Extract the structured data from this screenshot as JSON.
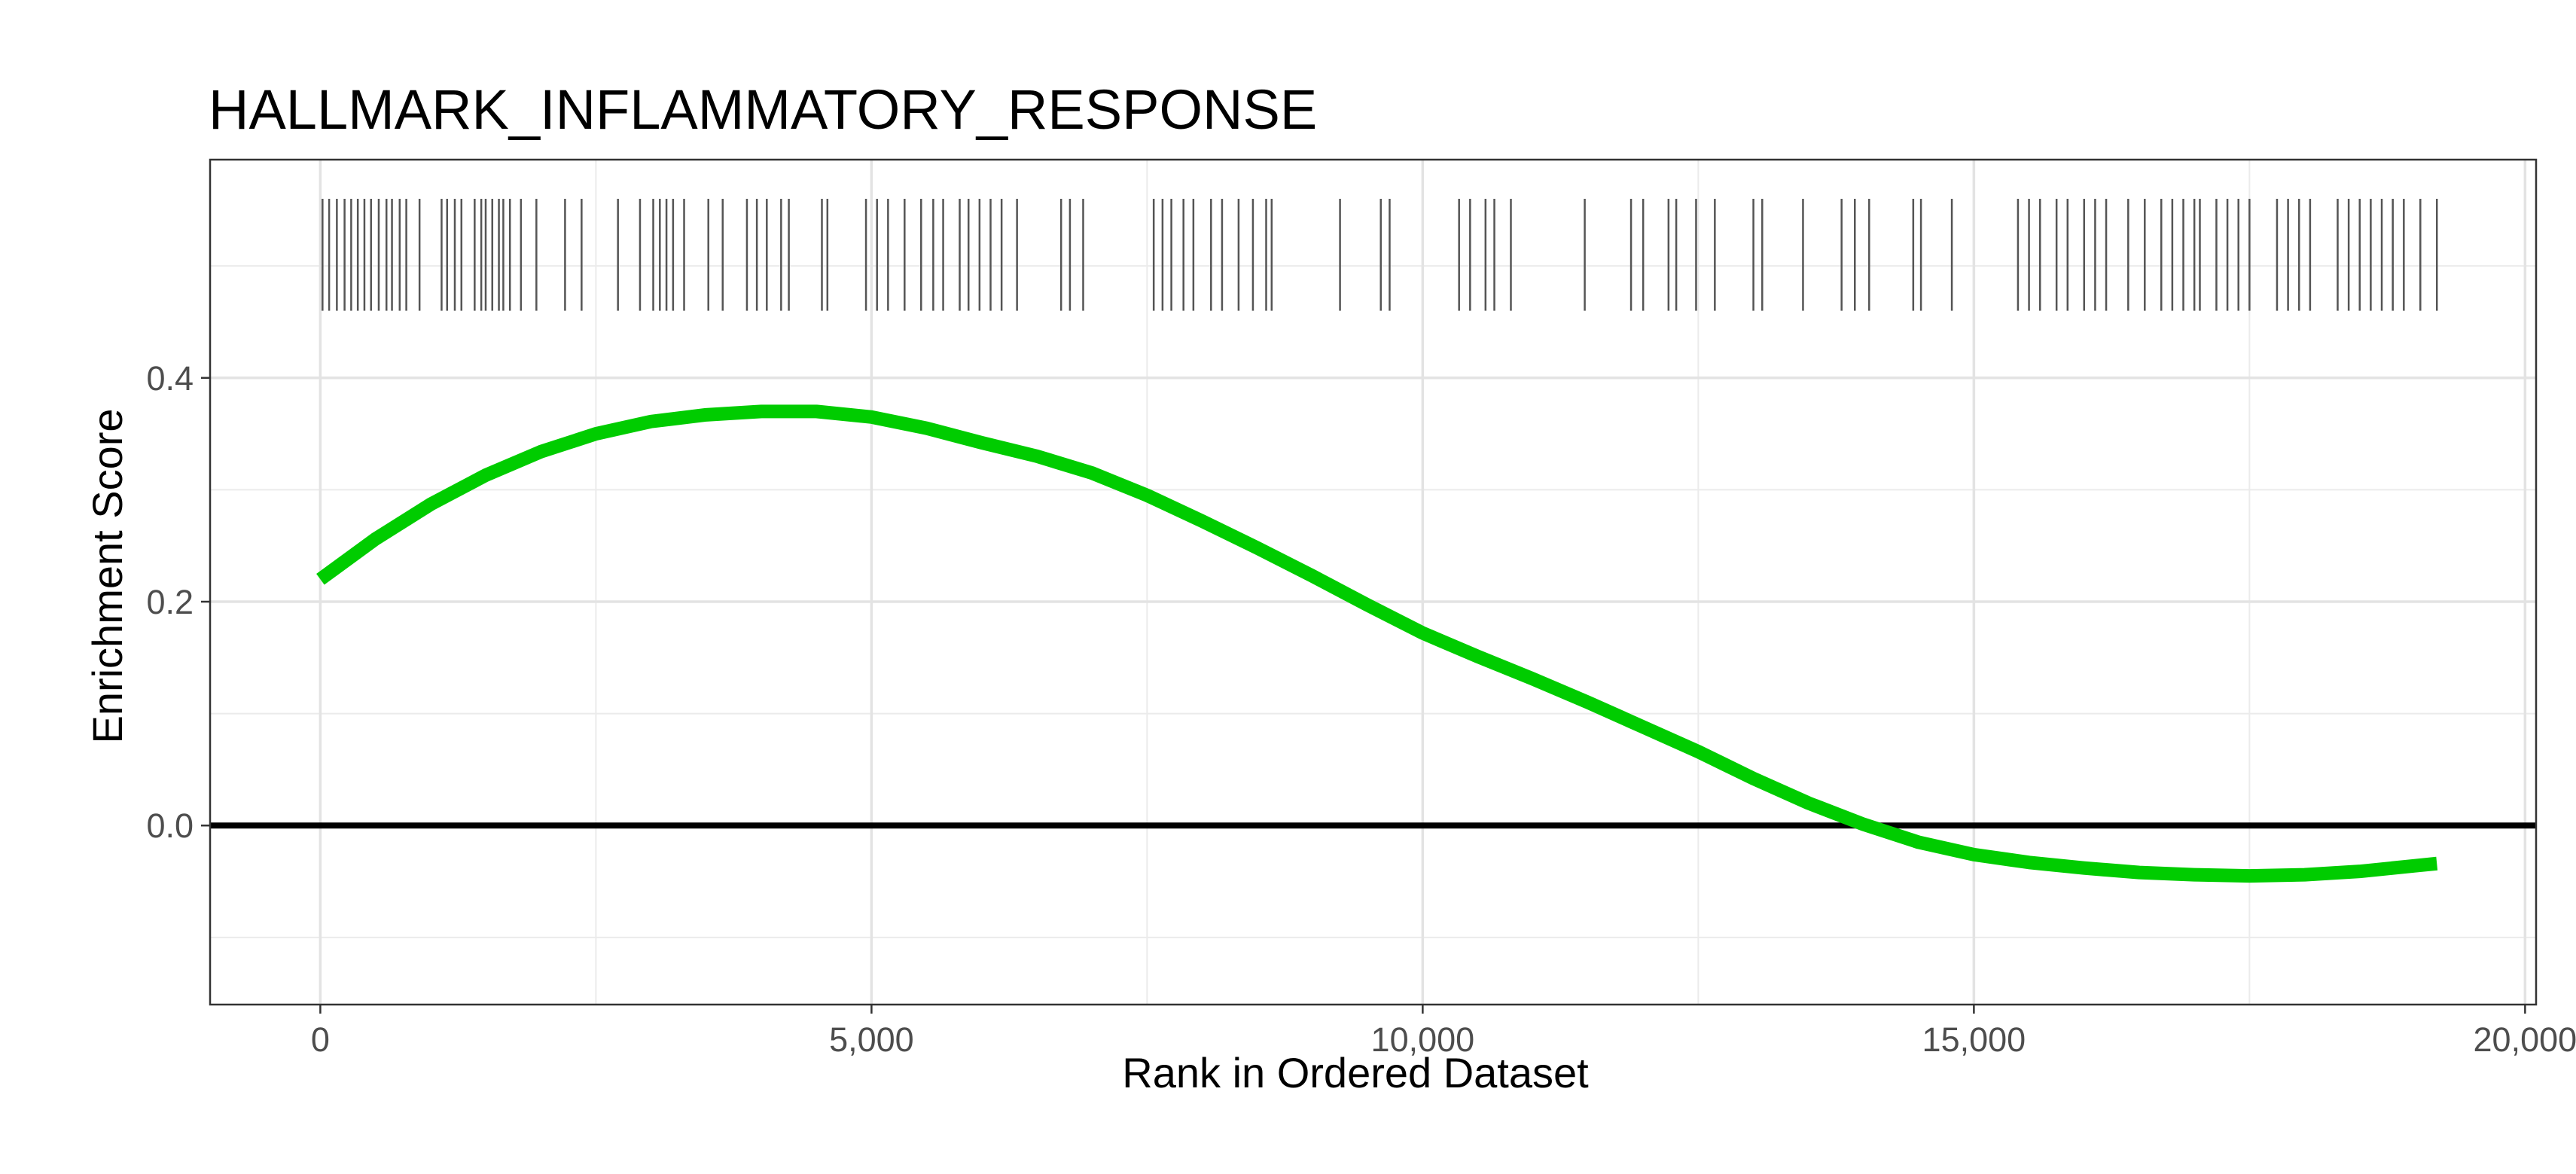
{
  "chart_data": {
    "type": "line",
    "title": "HALLMARK_INFLAMMATORY_RESPONSE",
    "xlabel": "Rank in Ordered Dataset",
    "ylabel": "Enrichment Score",
    "xlim": [
      -1000,
      20100
    ],
    "ylim": [
      -0.16,
      0.595
    ],
    "x_ticks": [
      0,
      5000,
      10000,
      15000,
      20000
    ],
    "x_tick_labels": [
      "0",
      "5,000",
      "10,000",
      "15,000",
      "20,000"
    ],
    "y_ticks": [
      0.0,
      0.2,
      0.4
    ],
    "y_tick_labels": [
      "0.0",
      "0.2",
      "0.4"
    ],
    "grid": true,
    "reference_line": {
      "y": 0.0,
      "color": "#000000"
    },
    "series": [
      {
        "color": "#00cc00",
        "x": [
          0,
          500,
          1000,
          1500,
          2000,
          2500,
          3000,
          3500,
          4000,
          4500,
          5000,
          5500,
          6000,
          6500,
          7000,
          7500,
          8000,
          8500,
          9000,
          9500,
          10000,
          10500,
          11000,
          11500,
          12000,
          12500,
          13000,
          13500,
          14000,
          14500,
          15000,
          15500,
          16000,
          16500,
          17000,
          17500,
          18000,
          18500,
          19000,
          19200
        ],
        "values": [
          0.22,
          0.256,
          0.287,
          0.313,
          0.334,
          0.35,
          0.361,
          0.367,
          0.37,
          0.37,
          0.365,
          0.355,
          0.342,
          0.33,
          0.315,
          0.295,
          0.272,
          0.248,
          0.223,
          0.197,
          0.172,
          0.151,
          0.131,
          0.11,
          0.088,
          0.066,
          0.042,
          0.02,
          0.001,
          -0.015,
          -0.026,
          -0.033,
          -0.038,
          -0.042,
          -0.044,
          -0.045,
          -0.044,
          -0.041,
          -0.036,
          -0.034
        ]
      }
    ],
    "gene_hits": {
      "color": "#555555",
      "y_range": [
        0.46,
        0.56
      ],
      "x": [
        20,
        80,
        150,
        220,
        280,
        340,
        400,
        460,
        530,
        600,
        650,
        720,
        780,
        900,
        1100,
        1150,
        1220,
        1280,
        1400,
        1460,
        1500,
        1560,
        1620,
        1660,
        1720,
        1820,
        1960,
        2220,
        2370,
        2700,
        2900,
        3020,
        3080,
        3140,
        3200,
        3300,
        3520,
        3650,
        3870,
        3960,
        4050,
        4180,
        4250,
        4550,
        4600,
        4950,
        5050,
        5150,
        5300,
        5450,
        5560,
        5650,
        5800,
        5880,
        5980,
        6080,
        6180,
        6320,
        6720,
        6800,
        6920,
        7560,
        7640,
        7720,
        7830,
        7920,
        8080,
        8180,
        8330,
        8460,
        8580,
        8630,
        9250,
        9620,
        9700,
        10330,
        10430,
        10570,
        10650,
        10800,
        11470,
        11890,
        12000,
        12230,
        12300,
        12480,
        12650,
        13000,
        13080,
        13450,
        13800,
        13920,
        14050,
        14450,
        14520,
        14800,
        15400,
        15500,
        15600,
        15750,
        15850,
        16000,
        16100,
        16200,
        16400,
        16550,
        16700,
        16800,
        16900,
        17000,
        17050,
        17200,
        17300,
        17400,
        17500,
        17750,
        17850,
        17950,
        18050,
        18300,
        18400,
        18500,
        18600,
        18700,
        18800,
        18900,
        19050,
        19200
      ]
    }
  }
}
